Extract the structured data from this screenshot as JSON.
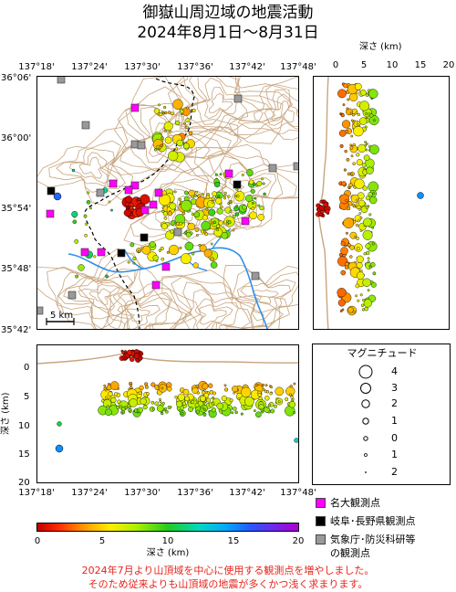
{
  "title": {
    "line1": "御嶽山周辺域の地震活動",
    "line2": "2024年8月1日～8月31日"
  },
  "map": {
    "lon_ticks": [
      "137°18'",
      "137°24'",
      "137°30'",
      "137°36'",
      "137°42'",
      "137°48'"
    ],
    "lat_ticks": [
      "36°06'",
      "36°00'",
      "35°54'",
      "35°48'",
      "35°42'"
    ],
    "scale_label": "5 km"
  },
  "depth_section_right": {
    "title": "深さ (km)",
    "ticks": [
      "0",
      "5",
      "10",
      "15",
      "20"
    ]
  },
  "depth_section_bottom": {
    "ylabel": "深さ (km)",
    "ticks": [
      "0",
      "5",
      "10",
      "15",
      "20"
    ],
    "lon_ticks": [
      "137°18'",
      "137°24'",
      "137°30'",
      "137°36'",
      "137°42'",
      "137°48'"
    ]
  },
  "magnitude_legend": {
    "title": "マグニチュード",
    "items": [
      "4",
      "3",
      "2",
      "1",
      "0",
      "1",
      "2"
    ]
  },
  "station_legend": [
    {
      "label": "名大観測点",
      "color": "#ff00ff"
    },
    {
      "label": "岐阜･長野県観測点",
      "color": "#000000"
    },
    {
      "label": "気象庁･防災科研等",
      "color": "#999999"
    },
    {
      "label": "の観測点",
      "color": ""
    }
  ],
  "colorbar": {
    "label": "深さ (km)",
    "ticks": [
      "0",
      "5",
      "10",
      "15",
      "20"
    ]
  },
  "note": {
    "line1": "2024年7月より山頂域を中心に使用する観測点を増やしました。",
    "line2": "そのため従来よりも山頂域の地震が多くかつ浅く求まります。"
  },
  "colors": {
    "contour": "#c8a57f",
    "river": "#2f8fe8",
    "border": "#000000"
  }
}
